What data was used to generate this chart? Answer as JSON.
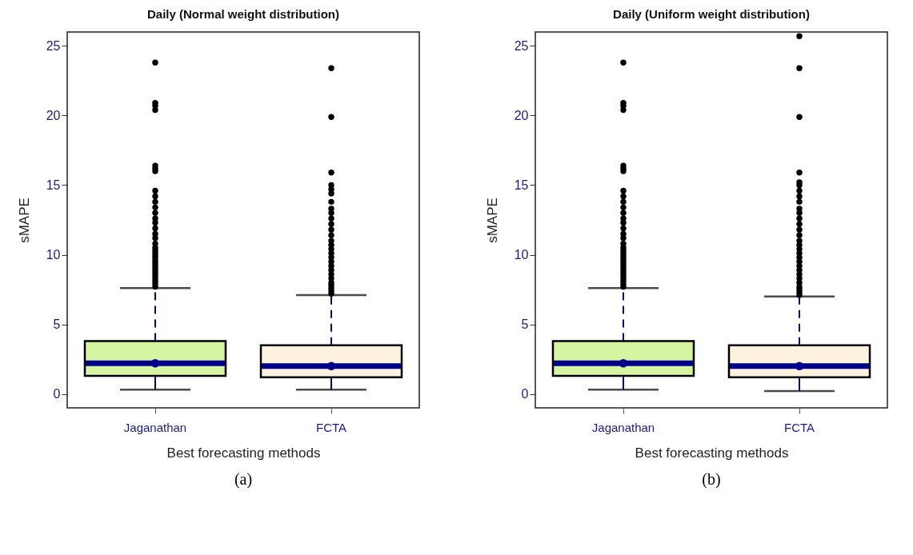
{
  "chart_data": [
    {
      "type": "box",
      "title": "Daily (Normal weight distribution)",
      "xlabel": "Best forecasting methods",
      "ylabel": "sMAPE",
      "categories": [
        "Jaganathan",
        "FCTA"
      ],
      "colors": [
        "#d5f5a3",
        "#fdf2e0"
      ],
      "ylim": [
        -1,
        26
      ],
      "yticks": [
        0,
        5,
        10,
        15,
        20,
        25
      ],
      "grid": false,
      "annotations": [
        "(a)"
      ],
      "boxes": [
        {
          "low": 0.3,
          "q1": 1.3,
          "median": 2.2,
          "q3": 3.8,
          "high": 7.6,
          "outliers": [
            7.7,
            7.9,
            8.1,
            8.3,
            8.5,
            8.7,
            8.9,
            9.1,
            9.3,
            9.5,
            9.7,
            9.9,
            10.1,
            10.3,
            10.5,
            10.8,
            11.2,
            11.5,
            11.9,
            12.3,
            12.6,
            13.0,
            13.4,
            13.8,
            14.2,
            14.6,
            16.0,
            16.2,
            16.4,
            20.4,
            20.7,
            20.9,
            23.8
          ]
        },
        {
          "low": 0.3,
          "q1": 1.2,
          "median": 2.0,
          "q3": 3.5,
          "high": 7.1,
          "outliers": [
            7.2,
            7.4,
            7.6,
            7.8,
            8.0,
            8.3,
            8.6,
            8.9,
            9.2,
            9.5,
            9.8,
            10.1,
            10.4,
            10.7,
            11.0,
            11.4,
            11.8,
            12.2,
            12.6,
            13.0,
            13.3,
            13.8,
            14.4,
            14.7,
            15.0,
            15.9,
            19.9,
            23.4
          ]
        }
      ]
    },
    {
      "type": "box",
      "title": "Daily (Uniform weight distribution)",
      "xlabel": "Best forecasting methods",
      "ylabel": "sMAPE",
      "categories": [
        "Jaganathan",
        "FCTA"
      ],
      "colors": [
        "#d5f5a3",
        "#fdf2e0"
      ],
      "ylim": [
        -1,
        26
      ],
      "yticks": [
        0,
        5,
        10,
        15,
        20,
        25
      ],
      "grid": false,
      "annotations": [
        "(b)"
      ],
      "boxes": [
        {
          "low": 0.3,
          "q1": 1.3,
          "median": 2.2,
          "q3": 3.8,
          "high": 7.6,
          "outliers": [
            7.7,
            7.9,
            8.1,
            8.3,
            8.5,
            8.7,
            8.9,
            9.1,
            9.3,
            9.5,
            9.7,
            9.9,
            10.1,
            10.3,
            10.5,
            10.8,
            11.2,
            11.5,
            11.9,
            12.3,
            12.6,
            13.0,
            13.4,
            13.8,
            14.2,
            14.6,
            16.0,
            16.2,
            16.4,
            20.4,
            20.7,
            20.9,
            23.8
          ]
        },
        {
          "low": 0.2,
          "q1": 1.2,
          "median": 2.0,
          "q3": 3.5,
          "high": 7.0,
          "outliers": [
            7.1,
            7.3,
            7.5,
            7.7,
            8.0,
            8.3,
            8.6,
            8.9,
            9.2,
            9.5,
            9.8,
            10.1,
            10.4,
            10.7,
            11.0,
            11.4,
            11.8,
            12.2,
            12.6,
            13.0,
            13.3,
            13.8,
            14.2,
            14.6,
            15.0,
            15.2,
            15.9,
            19.9,
            23.4,
            25.7
          ]
        }
      ]
    }
  ]
}
